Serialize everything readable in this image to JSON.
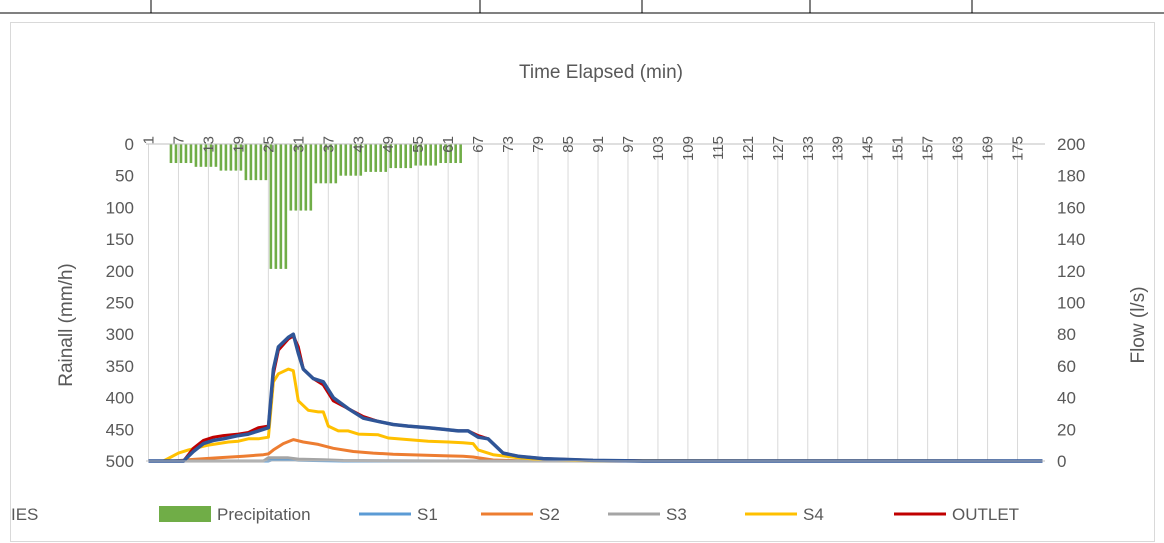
{
  "top_table_lines": true,
  "chart_data": {
    "type": "bar+line",
    "title": "",
    "xlabel": "Time Elapsed (min)",
    "ylabel_left": "Rainall (mm/h)",
    "ylabel_right": "Flow (l/s)",
    "x": {
      "min": 1,
      "max": 180,
      "tick_start": 1,
      "tick_step": 6
    },
    "x_tick_labels": [
      "1",
      "7",
      "13",
      "19",
      "25",
      "31",
      "37",
      "43",
      "49",
      "55",
      "61",
      "67",
      "73",
      "79",
      "85",
      "91",
      "97",
      "103",
      "109",
      "115",
      "121",
      "127",
      "133",
      "139",
      "145",
      "151",
      "157",
      "163",
      "169",
      "175"
    ],
    "y_left": {
      "min": 0,
      "max": 500,
      "step": 50,
      "inverted": true
    },
    "y_left_tick_labels": [
      "0",
      "50",
      "100",
      "150",
      "200",
      "250",
      "300",
      "350",
      "400",
      "450",
      "500"
    ],
    "y_right": {
      "min": 0,
      "max": 200,
      "step": 20
    },
    "y_right_tick_labels": [
      "0",
      "20",
      "40",
      "60",
      "80",
      "100",
      "120",
      "140",
      "160",
      "180",
      "200"
    ],
    "grid": "vertical",
    "legend_position": "bottom",
    "precipitation": {
      "name": "Precipitation",
      "color": "#70ad47",
      "axis": "left",
      "segments": [
        {
          "start": 5,
          "end": 10,
          "value": 30
        },
        {
          "start": 10,
          "end": 15,
          "value": 36
        },
        {
          "start": 15,
          "end": 20,
          "value": 42
        },
        {
          "start": 20,
          "end": 25,
          "value": 57
        },
        {
          "start": 25,
          "end": 29,
          "value": 197
        },
        {
          "start": 29,
          "end": 34,
          "value": 105
        },
        {
          "start": 34,
          "end": 39,
          "value": 62
        },
        {
          "start": 39,
          "end": 44,
          "value": 50
        },
        {
          "start": 44,
          "end": 49,
          "value": 44
        },
        {
          "start": 49,
          "end": 54,
          "value": 38
        },
        {
          "start": 54,
          "end": 59,
          "value": 34
        },
        {
          "start": 59,
          "end": 64,
          "value": 30
        }
      ]
    },
    "series": [
      {
        "name": "S1",
        "color": "#5b9bd5",
        "axis": "right",
        "points": [
          [
            1,
            0
          ],
          [
            25,
            0
          ],
          [
            26,
            1
          ],
          [
            29,
            1
          ],
          [
            31,
            0.5
          ],
          [
            40,
            0
          ],
          [
            180,
            0
          ]
        ]
      },
      {
        "name": "S2",
        "color": "#ed7d31",
        "axis": "right",
        "points": [
          [
            1,
            0
          ],
          [
            6,
            0
          ],
          [
            10,
            1
          ],
          [
            15,
            2
          ],
          [
            20,
            3
          ],
          [
            24,
            4
          ],
          [
            25,
            4.5
          ],
          [
            26,
            7
          ],
          [
            28,
            11
          ],
          [
            30,
            13.5
          ],
          [
            32,
            12
          ],
          [
            35,
            10.5
          ],
          [
            38,
            8
          ],
          [
            42,
            6
          ],
          [
            46,
            5
          ],
          [
            50,
            4.3
          ],
          [
            55,
            3.8
          ],
          [
            60,
            3.3
          ],
          [
            64,
            3
          ],
          [
            66,
            2.5
          ],
          [
            70,
            0.6
          ],
          [
            75,
            0.2
          ],
          [
            180,
            0
          ]
        ]
      },
      {
        "name": "S3",
        "color": "#a5a5a5",
        "axis": "right",
        "points": [
          [
            1,
            0
          ],
          [
            24,
            0
          ],
          [
            25,
            2
          ],
          [
            29,
            2
          ],
          [
            31,
            1.2
          ],
          [
            36,
            0.8
          ],
          [
            40,
            0.3
          ],
          [
            60,
            0
          ],
          [
            180,
            0
          ]
        ]
      },
      {
        "name": "S4",
        "color": "#ffc000",
        "axis": "right",
        "points": [
          [
            1,
            0
          ],
          [
            4,
            0
          ],
          [
            7,
            5
          ],
          [
            9,
            7
          ],
          [
            13,
            10
          ],
          [
            17,
            12
          ],
          [
            19,
            12.5
          ],
          [
            21,
            14
          ],
          [
            23,
            14
          ],
          [
            25,
            15
          ],
          [
            26,
            50
          ],
          [
            27,
            55
          ],
          [
            29,
            58
          ],
          [
            30,
            57
          ],
          [
            31,
            38
          ],
          [
            33,
            32
          ],
          [
            35,
            31
          ],
          [
            36,
            31
          ],
          [
            37,
            22
          ],
          [
            39,
            19
          ],
          [
            41,
            19
          ],
          [
            43,
            17
          ],
          [
            47,
            16.5
          ],
          [
            49,
            14.5
          ],
          [
            53,
            13.5
          ],
          [
            57,
            12.5
          ],
          [
            61,
            12
          ],
          [
            64,
            11.5
          ],
          [
            66,
            11
          ],
          [
            67,
            7
          ],
          [
            70,
            4
          ],
          [
            75,
            2
          ],
          [
            80,
            0.8
          ],
          [
            90,
            0.2
          ],
          [
            180,
            0
          ]
        ]
      },
      {
        "name": "OUTLET",
        "color": "#c00000",
        "axis": "right",
        "points": [
          [
            1,
            0
          ],
          [
            8,
            0
          ],
          [
            10,
            8
          ],
          [
            12,
            13
          ],
          [
            14,
            15
          ],
          [
            16,
            16
          ],
          [
            19,
            17
          ],
          [
            21,
            18
          ],
          [
            23,
            21
          ],
          [
            25,
            22
          ],
          [
            26,
            55
          ],
          [
            27,
            70
          ],
          [
            29,
            77
          ],
          [
            30,
            79
          ],
          [
            31,
            72
          ],
          [
            32,
            58
          ],
          [
            34,
            52
          ],
          [
            36,
            48
          ],
          [
            38,
            38
          ],
          [
            41,
            33
          ],
          [
            44,
            28
          ],
          [
            47,
            25
          ],
          [
            50,
            23
          ],
          [
            53,
            22
          ],
          [
            57,
            21
          ],
          [
            60,
            20
          ],
          [
            63,
            19
          ],
          [
            65,
            19
          ],
          [
            67,
            16
          ],
          [
            69,
            14
          ],
          [
            72,
            5
          ],
          [
            75,
            3
          ],
          [
            80,
            1.5
          ],
          [
            90,
            0.4
          ],
          [
            100,
            0
          ],
          [
            180,
            0
          ]
        ]
      },
      {
        "name": "IES",
        "color": "#2f5597",
        "axis": "right",
        "points": [
          [
            1,
            0
          ],
          [
            8,
            0
          ],
          [
            10,
            6
          ],
          [
            12,
            11
          ],
          [
            14,
            13
          ],
          [
            16,
            14
          ],
          [
            19,
            16
          ],
          [
            21,
            17
          ],
          [
            23,
            19
          ],
          [
            25,
            21
          ],
          [
            26,
            58
          ],
          [
            27,
            72
          ],
          [
            29,
            78
          ],
          [
            30,
            80
          ],
          [
            31,
            68
          ],
          [
            32,
            58
          ],
          [
            34,
            52
          ],
          [
            36,
            50
          ],
          [
            38,
            40
          ],
          [
            41,
            33
          ],
          [
            44,
            27
          ],
          [
            47,
            25
          ],
          [
            50,
            23
          ],
          [
            53,
            22
          ],
          [
            57,
            21
          ],
          [
            60,
            20
          ],
          [
            63,
            19
          ],
          [
            65,
            19
          ],
          [
            67,
            15
          ],
          [
            69,
            14
          ],
          [
            72,
            5
          ],
          [
            75,
            3
          ],
          [
            80,
            1.5
          ],
          [
            90,
            0.4
          ],
          [
            100,
            0
          ],
          [
            180,
            0
          ]
        ]
      }
    ]
  }
}
